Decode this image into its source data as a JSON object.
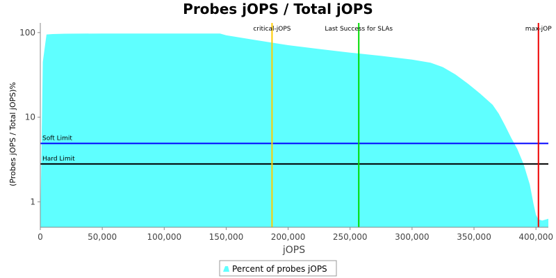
{
  "chart_data": {
    "type": "area",
    "title": "Probes jOPS / Total jOPS",
    "xlabel": "jOPS",
    "ylabel": "(Probes jOPS / Total jOPS)%",
    "x_scale": "linear",
    "y_scale": "log",
    "xlim": [
      0,
      410000
    ],
    "ylim": [
      0.5,
      130
    ],
    "x_ticks": [
      0,
      50000,
      100000,
      150000,
      200000,
      250000,
      300000,
      350000,
      400000
    ],
    "x_tick_labels": [
      "0",
      "50,000",
      "100,000",
      "150,000",
      "200,000",
      "250,000",
      "300,000",
      "350,000",
      "400,000"
    ],
    "y_ticks": [
      1,
      10,
      100
    ],
    "y_tick_labels": [
      "1",
      "10",
      "100"
    ],
    "series": [
      {
        "name": "Percent of probes jOPS",
        "color": "#5fffff",
        "x": [
          0,
          2000,
          5000,
          10000,
          20000,
          50000,
          100000,
          145000,
          150000,
          175000,
          200000,
          225000,
          250000,
          275000,
          300000,
          315000,
          325000,
          335000,
          345000,
          355000,
          365000,
          370000,
          375000,
          380000,
          385000,
          390000,
          395000,
          398000,
          400000,
          402000,
          405000,
          410000
        ],
        "y": [
          0.5,
          45,
          95,
          96,
          97,
          97.5,
          97.5,
          97.5,
          93,
          81,
          71,
          64,
          58,
          53,
          48,
          44,
          39,
          32,
          25,
          19,
          14,
          11,
          8,
          5.7,
          4.2,
          2.8,
          1.6,
          0.95,
          0.7,
          0.62,
          0.6,
          0.63
        ]
      }
    ],
    "reference_lines": [
      {
        "label": "Soft Limit",
        "orientation": "horizontal",
        "value": 4.9,
        "color": "#0000ff"
      },
      {
        "label": "Hard Limit",
        "orientation": "horizontal",
        "value": 2.8,
        "color": "#000000"
      },
      {
        "label": "critical-jOPS",
        "orientation": "vertical",
        "value": 187000,
        "color": "#ffcc00"
      },
      {
        "label": "Last Success for SLAs",
        "orientation": "vertical",
        "value": 257000,
        "color": "#00dd00"
      },
      {
        "label": "max-jOP",
        "orientation": "vertical",
        "value": 402000,
        "color": "#ee0000"
      }
    ],
    "legend": {
      "position": "bottom",
      "entries": [
        "Percent of probes jOPS"
      ]
    },
    "grid": false
  }
}
